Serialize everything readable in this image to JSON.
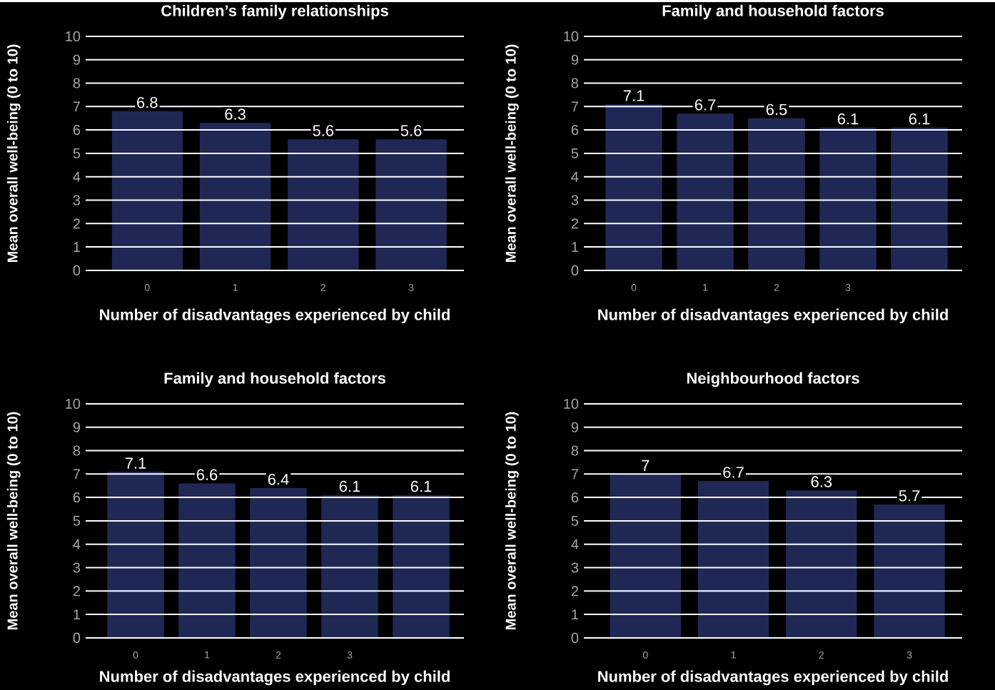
{
  "chart_data": [
    {
      "type": "bar",
      "title": "Children’s family relationships",
      "xlabel": "Number of disadvantages experienced by child",
      "ylabel": "Mean overall well-being (0 to 10)",
      "categories": [
        "0",
        "1",
        "2",
        "3"
      ],
      "values": [
        6.8,
        6.3,
        5.6,
        5.6
      ],
      "color": "#1f2855",
      "ylim": [
        0,
        10
      ],
      "yticks": [
        0,
        1,
        2,
        3,
        4,
        5,
        6,
        7,
        8,
        9,
        10
      ],
      "grid": "y",
      "data_labels": true
    },
    {
      "type": "bar",
      "title": "Family and household factors",
      "xlabel": "Number of disadvantages experienced by child",
      "ylabel": "Mean overall well-being (0 to 10)",
      "categories": [
        "0",
        "1",
        "2",
        "3",
        null
      ],
      "values": [
        7.1,
        6.7,
        6.5,
        6.1,
        6.1
      ],
      "color": "#1f2855",
      "ylim": [
        0,
        10
      ],
      "yticks": [
        0,
        1,
        2,
        3,
        4,
        5,
        6,
        7,
        8,
        9,
        10
      ],
      "grid": "y",
      "data_labels": true
    },
    {
      "type": "bar",
      "title": "Family and household factors",
      "xlabel": "Number of disadvantages experienced by child",
      "ylabel": "Mean overall well-being (0 to 10)",
      "categories": [
        "0",
        "1",
        "2",
        "3",
        null
      ],
      "values": [
        7.1,
        6.6,
        6.4,
        6.1,
        6.1
      ],
      "color": "#1f2855",
      "ylim": [
        0,
        10
      ],
      "yticks": [
        0,
        1,
        2,
        3,
        4,
        5,
        6,
        7,
        8,
        9,
        10
      ],
      "grid": "y",
      "data_labels": true
    },
    {
      "type": "bar",
      "title": "Neighbourhood factors",
      "xlabel": "Number of disadvantages experienced by child",
      "ylabel": "Mean overall well-being (0 to 10)",
      "categories": [
        "0",
        "1",
        "2",
        "3"
      ],
      "values": [
        7,
        6.7,
        6.3,
        5.7
      ],
      "color": "#1f2855",
      "ylim": [
        0,
        10
      ],
      "yticks": [
        0,
        1,
        2,
        3,
        4,
        5,
        6,
        7,
        8,
        9,
        10
      ],
      "grid": "y",
      "data_labels": true
    }
  ]
}
